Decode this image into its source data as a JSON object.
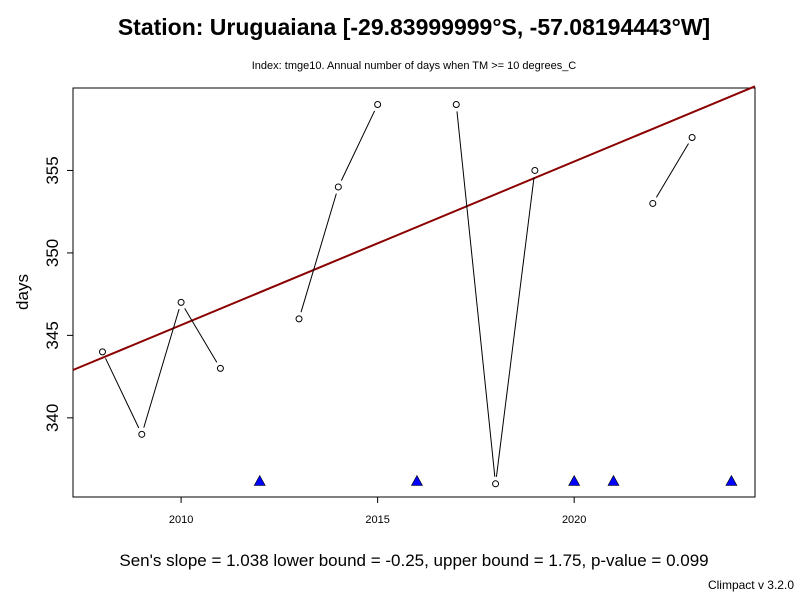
{
  "header": {
    "title": "Station: Uruguaiana [-29.83999999°S, -57.08194443°W]",
    "subtitle": "Index: tmge10. Annual number of days when TM >= 10 degrees_C"
  },
  "footer": {
    "stats": "Sen's slope = 1.038   lower bound = -0.25,   upper bound = 1.75,   p-value = 0.099",
    "version": "Climpact v 3.2.0"
  },
  "colors": {
    "trend": "#8b0000",
    "missing_marker": "#0000ff",
    "series": "#000000"
  },
  "chart_data": {
    "type": "line",
    "title": "Station: Uruguaiana [-29.83999999°S, -57.08194443°W]",
    "subtitle": "Index: tmge10. Annual number of days when TM >= 10 degrees_C",
    "xlabel": "",
    "ylabel": "days",
    "xlim": [
      2007.25,
      2024.6
    ],
    "ylim": [
      335.2,
      360.0
    ],
    "x_ticks": [
      2010,
      2015,
      2020
    ],
    "y_ticks": [
      340,
      345,
      350,
      355
    ],
    "grid": false,
    "series": [
      {
        "name": "tmge10",
        "x": [
          2008,
          2009,
          2010,
          2011,
          2012,
          2013,
          2014,
          2015,
          2016,
          2017,
          2018,
          2019,
          2020,
          2021,
          2022,
          2023,
          2024
        ],
        "values": [
          344,
          339,
          347,
          343,
          null,
          346,
          354,
          359,
          null,
          359,
          336,
          355,
          null,
          null,
          353,
          357,
          null
        ]
      }
    ],
    "missing_years": [
      2012,
      2016,
      2020,
      2021,
      2024
    ],
    "trend_line": {
      "x": [
        2007.25,
        2024.6
      ],
      "values": [
        342.9,
        360.1
      ]
    },
    "annotations": {
      "sens_slope": 1.038,
      "lower_bound": -0.25,
      "upper_bound": 1.75,
      "p_value": 0.099
    }
  }
}
